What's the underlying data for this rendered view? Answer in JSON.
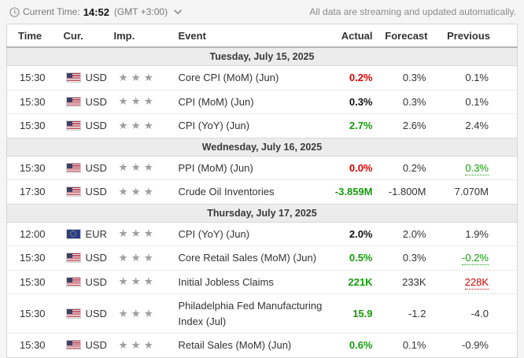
{
  "topbar": {
    "current_time_label": "Current Time:",
    "current_time": "14:52",
    "timezone": "(GMT +3:00)",
    "streaming_note": "All data are streaming and updated automatically."
  },
  "table": {
    "headers": {
      "time": "Time",
      "cur": "Cur.",
      "imp": "Imp.",
      "event": "Event",
      "actual": "Actual",
      "forecast": "Forecast",
      "previous": "Previous"
    },
    "groups": [
      {
        "date": "Tuesday, July 15, 2025",
        "rows": [
          {
            "time": "15:30",
            "currency": "USD",
            "flag": "us",
            "importance": 3,
            "event": "Core CPI (MoM) (Jun)",
            "actual": "0.2%",
            "actual_tone": "negative",
            "forecast": "0.3%",
            "previous": "0.1%",
            "previous_tone": "neutral",
            "previous_revised": false
          },
          {
            "time": "15:30",
            "currency": "USD",
            "flag": "us",
            "importance": 3,
            "event": "CPI (MoM) (Jun)",
            "actual": "0.3%",
            "actual_tone": "neutral",
            "forecast": "0.3%",
            "previous": "0.1%",
            "previous_tone": "neutral",
            "previous_revised": false
          },
          {
            "time": "15:30",
            "currency": "USD",
            "flag": "us",
            "importance": 3,
            "event": "CPI (YoY) (Jun)",
            "actual": "2.7%",
            "actual_tone": "positive",
            "forecast": "2.6%",
            "previous": "2.4%",
            "previous_tone": "neutral",
            "previous_revised": false
          }
        ]
      },
      {
        "date": "Wednesday, July 16, 2025",
        "rows": [
          {
            "time": "15:30",
            "currency": "USD",
            "flag": "us",
            "importance": 3,
            "event": "PPI (MoM) (Jun)",
            "actual": "0.0%",
            "actual_tone": "negative",
            "forecast": "0.2%",
            "previous": "0.3%",
            "previous_tone": "positive",
            "previous_revised": true
          },
          {
            "time": "17:30",
            "currency": "USD",
            "flag": "us",
            "importance": 3,
            "event": "Crude Oil Inventories",
            "actual": "-3.859M",
            "actual_tone": "positive",
            "forecast": "-1.800M",
            "previous": "7.070M",
            "previous_tone": "neutral",
            "previous_revised": false
          }
        ]
      },
      {
        "date": "Thursday, July 17, 2025",
        "rows": [
          {
            "time": "12:00",
            "currency": "EUR",
            "flag": "eu",
            "importance": 3,
            "event": "CPI (YoY) (Jun)",
            "actual": "2.0%",
            "actual_tone": "neutral",
            "forecast": "2.0%",
            "previous": "1.9%",
            "previous_tone": "neutral",
            "previous_revised": false
          },
          {
            "time": "15:30",
            "currency": "USD",
            "flag": "us",
            "importance": 3,
            "event": "Core Retail Sales (MoM) (Jun)",
            "actual": "0.5%",
            "actual_tone": "positive",
            "forecast": "0.3%",
            "previous": "-0.2%",
            "previous_tone": "positive",
            "previous_revised": true
          },
          {
            "time": "15:30",
            "currency": "USD",
            "flag": "us",
            "importance": 3,
            "event": "Initial Jobless Claims",
            "actual": "221K",
            "actual_tone": "positive",
            "forecast": "233K",
            "previous": "228K",
            "previous_tone": "negative",
            "previous_revised": true
          },
          {
            "time": "15:30",
            "currency": "USD",
            "flag": "us",
            "importance": 3,
            "event": "Philadelphia Fed Manufacturing Index (Jul)",
            "actual": "15.9",
            "actual_tone": "positive",
            "forecast": "-1.2",
            "previous": "-4.0",
            "previous_tone": "neutral",
            "previous_revised": false
          },
          {
            "time": "15:30",
            "currency": "USD",
            "flag": "us",
            "importance": 3,
            "event": "Retail Sales (MoM) (Jun)",
            "actual": "0.6%",
            "actual_tone": "positive",
            "forecast": "0.1%",
            "previous": "-0.9%",
            "previous_tone": "neutral",
            "previous_revised": false
          }
        ]
      }
    ]
  },
  "icons": {
    "clock": "clock-icon",
    "chevron": "chevron-down-icon",
    "star_glyph": "★"
  },
  "colors": {
    "positive": "#149b0b",
    "negative": "#dd0000",
    "neutral": "#333333",
    "date_row_bg": "#ececec"
  }
}
